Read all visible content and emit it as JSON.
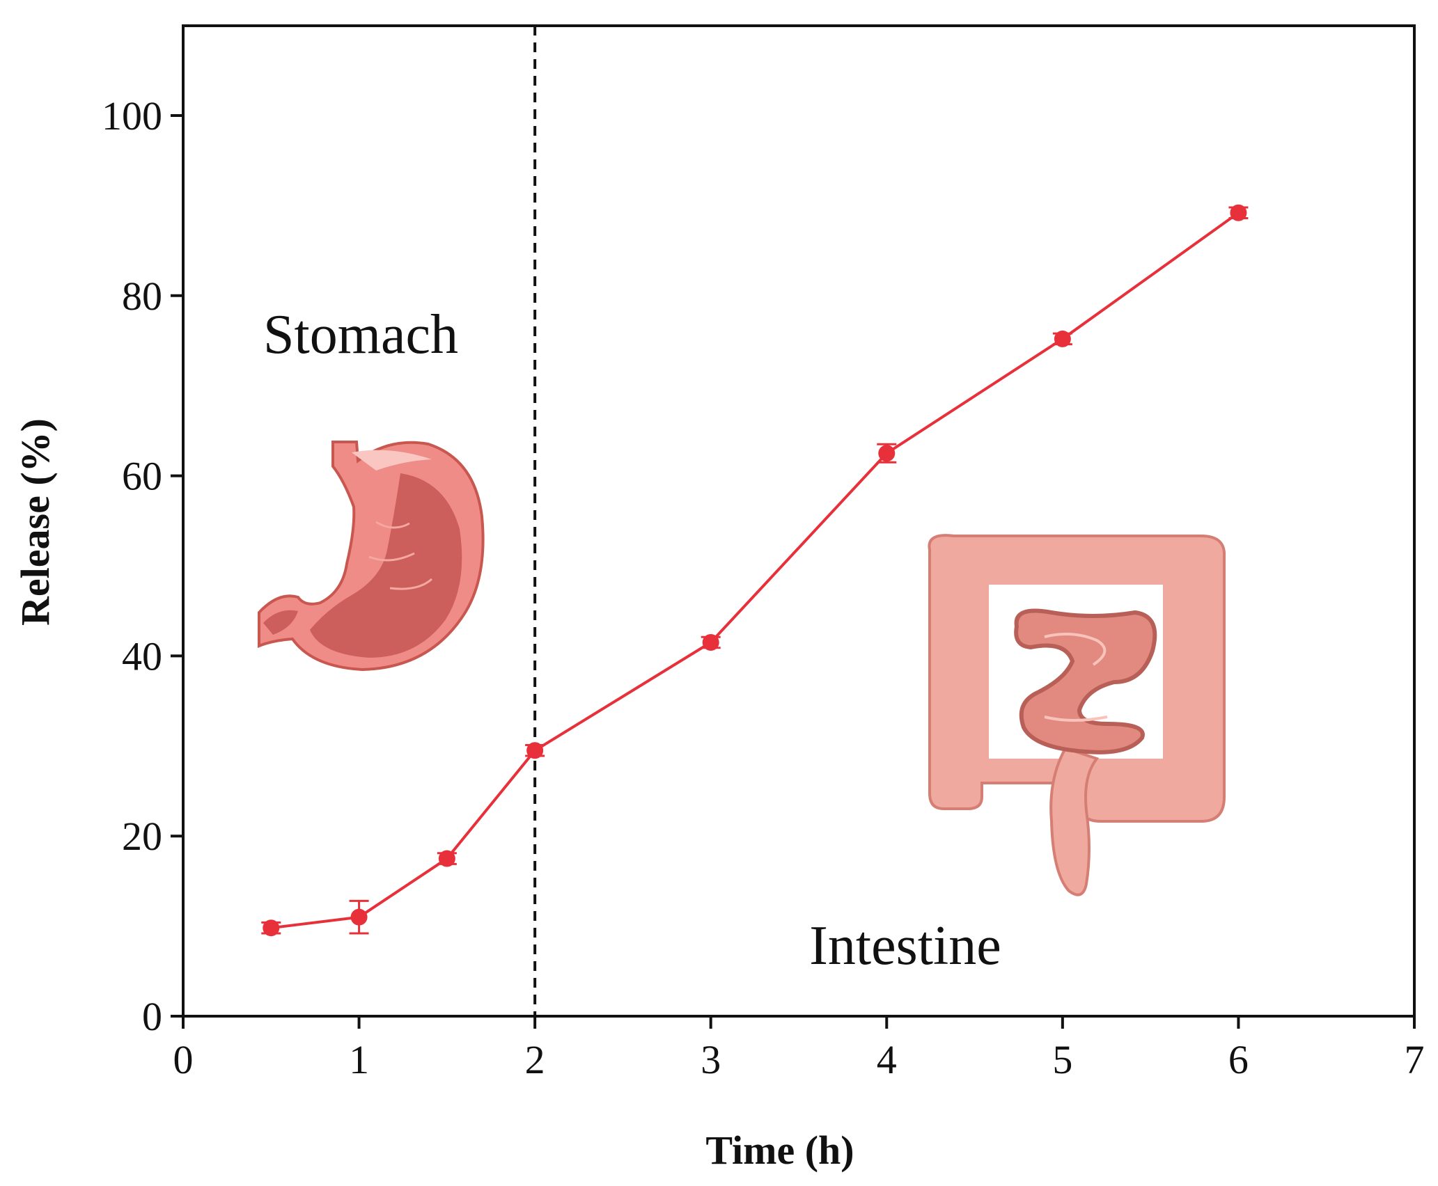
{
  "chart_data": {
    "type": "line",
    "title": "",
    "xlabel": "Time (h)",
    "ylabel": "Release (%)",
    "xlim": [
      0,
      7
    ],
    "ylim": [
      0,
      110
    ],
    "xticks": [
      0,
      1,
      2,
      3,
      4,
      5,
      6,
      7
    ],
    "yticks": [
      0,
      20,
      40,
      60,
      80,
      100
    ],
    "grid": false,
    "series": [
      {
        "name": "Release",
        "color": "#e8303a",
        "x": [
          0.5,
          1,
          1.5,
          2,
          3,
          4,
          5,
          6
        ],
        "y": [
          9.8,
          11.0,
          17.5,
          29.5,
          41.5,
          62.5,
          75.2,
          89.2
        ],
        "err": [
          0.6,
          1.8,
          0.6,
          0.6,
          0.6,
          1.0,
          0.6,
          0.6
        ]
      }
    ],
    "vline": {
      "x": 2,
      "style": "dashed"
    },
    "annotations": [
      {
        "text": "Stomach",
        "region": "left"
      },
      {
        "text": "Intestine",
        "region": "right"
      }
    ],
    "illustrations": [
      "stomach-illustration",
      "intestine-illustration"
    ]
  }
}
